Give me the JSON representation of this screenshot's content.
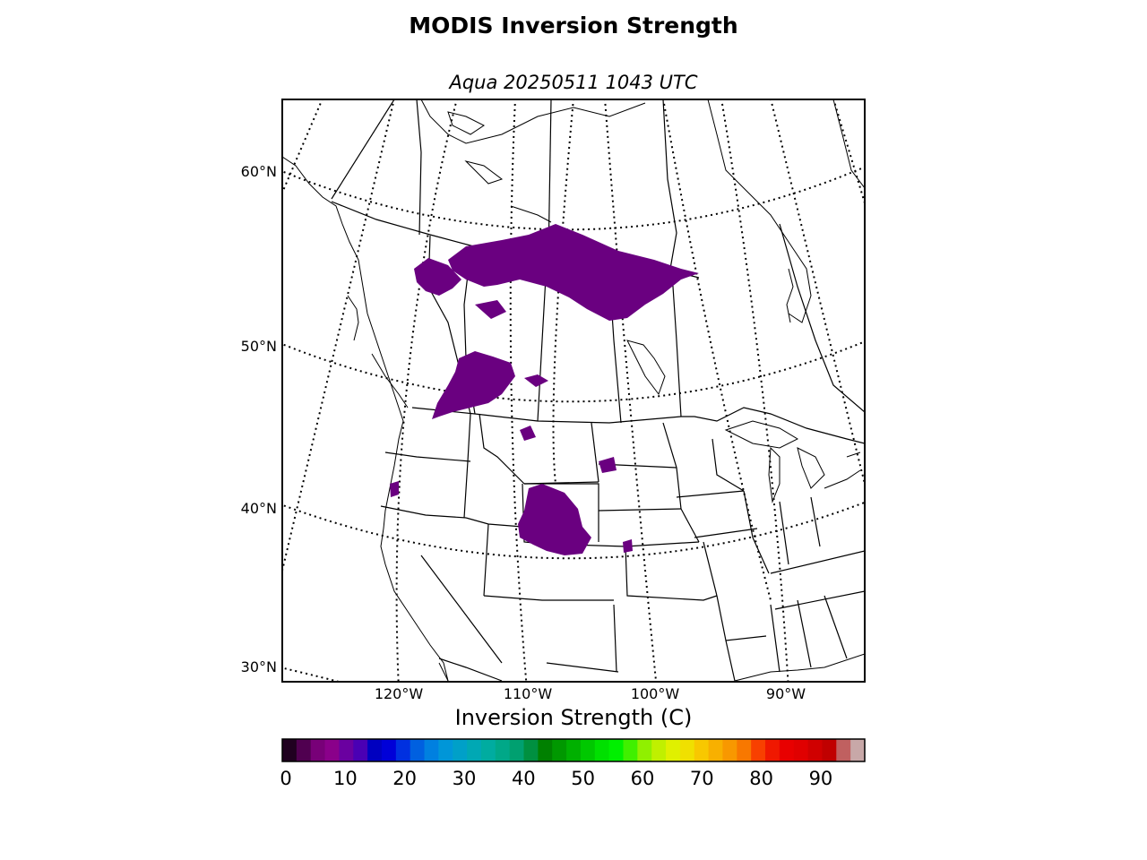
{
  "title": "MODIS Inversion Strength",
  "subtitle": "Aqua 20250511 1043 UTC",
  "map": {
    "latitude_labels": [
      "60°N",
      "50°N",
      "40°N",
      "30°N"
    ],
    "longitude_labels": [
      "120°W",
      "110°W",
      "100°W",
      "90°W"
    ],
    "graticule": "dotted",
    "data_color": "#6a0080",
    "boundaries": [
      "coastlines",
      "country borders",
      "state/province borders"
    ]
  },
  "colorbar": {
    "label": "Inversion Strength (C)",
    "min": 0,
    "max": 98,
    "ticks": [
      "0",
      "10",
      "20",
      "30",
      "40",
      "50",
      "60",
      "70",
      "80",
      "90"
    ],
    "tick_values": [
      0,
      10,
      20,
      30,
      40,
      50,
      60,
      70,
      80,
      90
    ],
    "colors": [
      "#200020",
      "#500050",
      "#780078",
      "#8a008a",
      "#6a00a0",
      "#4a00b4",
      "#0000c0",
      "#0000d8",
      "#0030e0",
      "#0060e0",
      "#0080e0",
      "#0096d8",
      "#00a0c8",
      "#00a8b4",
      "#00aca0",
      "#00a888",
      "#00a070",
      "#009040",
      "#008000",
      "#009800",
      "#00b000",
      "#00c800",
      "#00e000",
      "#00f000",
      "#40f000",
      "#90f000",
      "#c0f000",
      "#e0f000",
      "#f0e000",
      "#f8c800",
      "#f8b000",
      "#f89800",
      "#f87800",
      "#f84000",
      "#f01800",
      "#e80000",
      "#e00000",
      "#d00000",
      "#c00000",
      "#c06060",
      "#c8a8a8"
    ]
  }
}
